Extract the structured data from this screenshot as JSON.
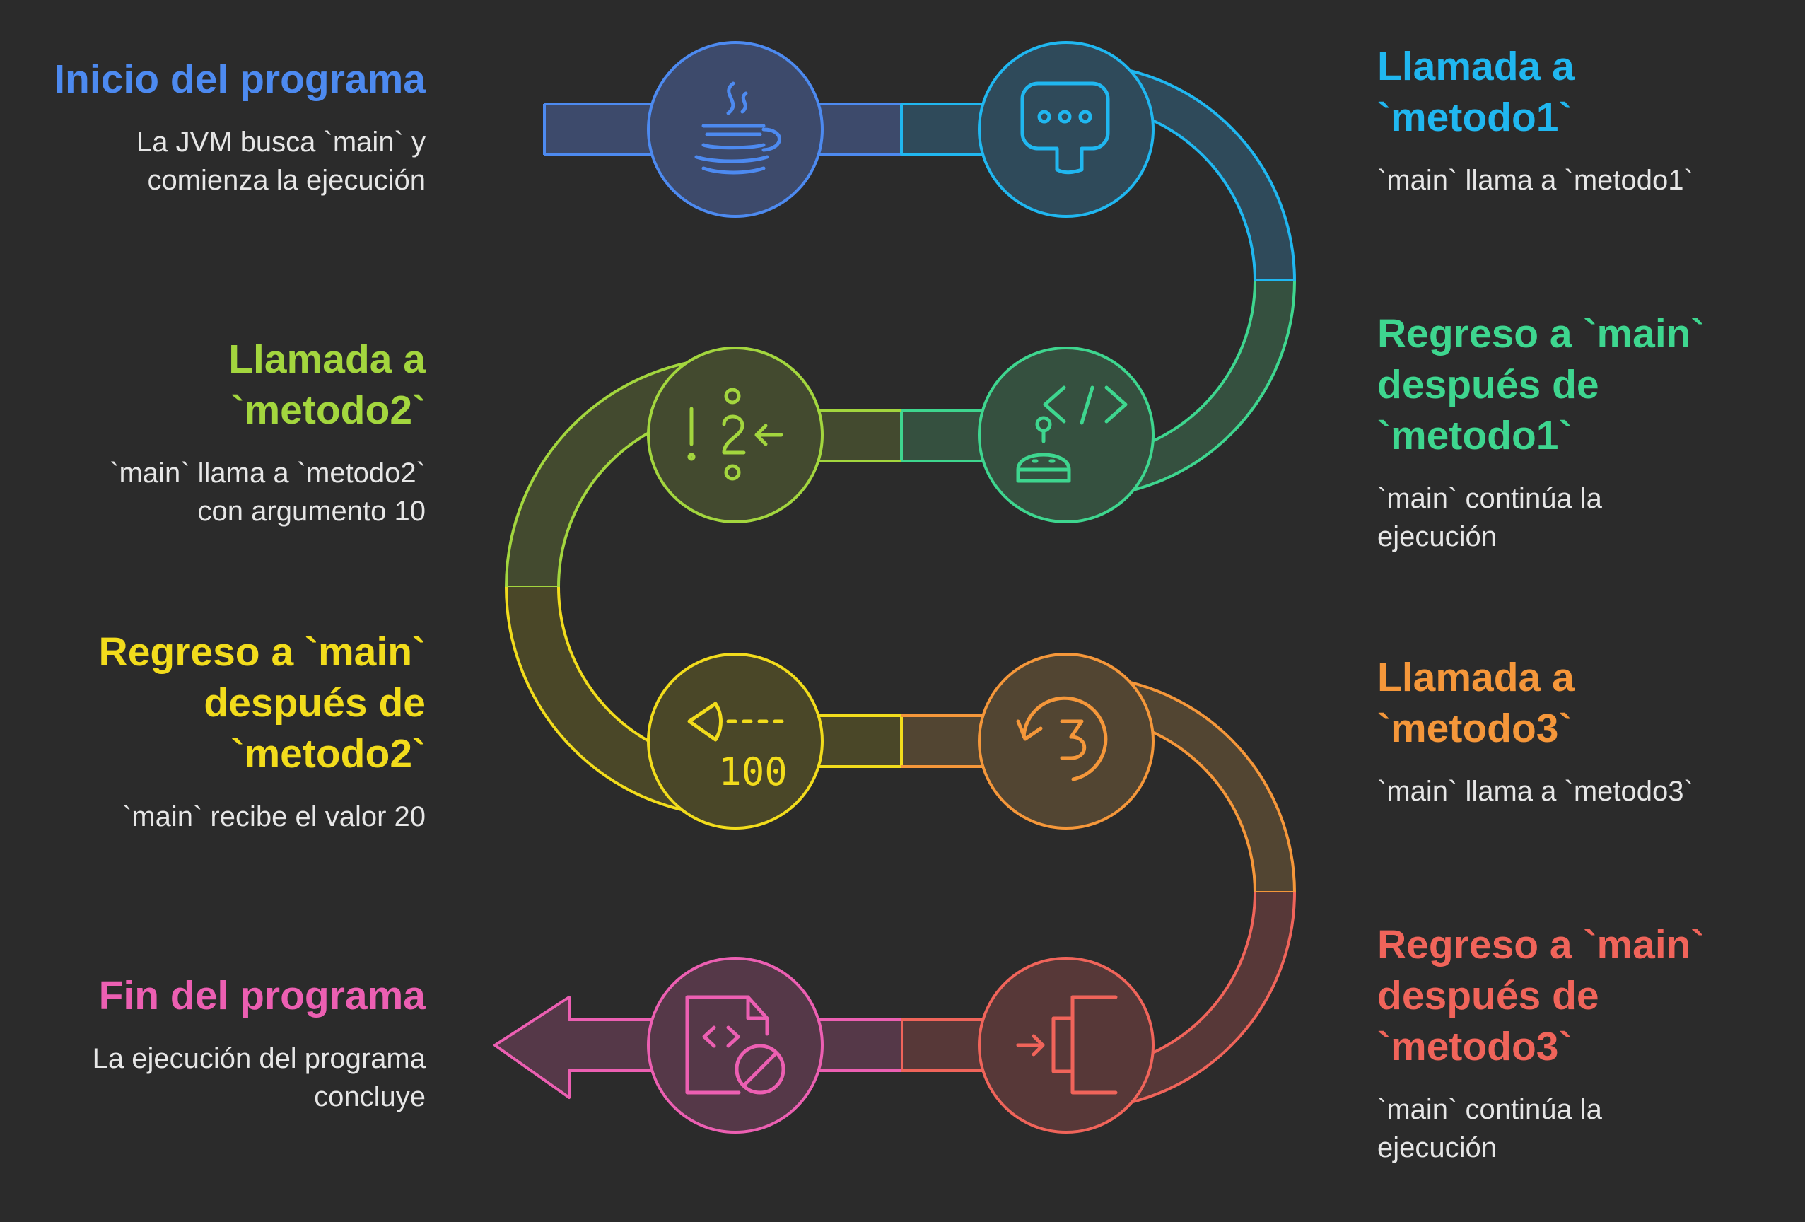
{
  "colors": {
    "background": "#2b2b2b",
    "step1": "#4d8af0",
    "step2": "#20b7f0",
    "step3": "#3ed68f",
    "step4": "#a3d63e",
    "step5": "#f2dc1c",
    "step6": "#f5973a",
    "step7": "#f0645a",
    "step8": "#ec5fb2"
  },
  "steps": [
    {
      "title": "Inicio del programa",
      "desc": "La JVM busca `main` y\ncomienza la ejecución",
      "icon": "java-icon"
    },
    {
      "title": "Llamada a\n`metodo1`",
      "desc": "`main` llama a `metodo1`",
      "icon": "chat-bubble-icon"
    },
    {
      "title": "Regreso a `main`\ndespués de\n`metodo1`",
      "desc": "`main` continúa la\nejecución",
      "icon": "robot-code-icon"
    },
    {
      "title": "Llamada a\n`metodo2`",
      "desc": "`main` llama a `metodo2`\ncon argumento 10",
      "icon": "argument-input-icon"
    },
    {
      "title": "Regreso a `main`\ndespués de\n`metodo2`",
      "desc": "`main` recibe el valor 20",
      "icon": "return-value-icon"
    },
    {
      "title": "Llamada a\n`metodo3`",
      "desc": "`main` llama a `metodo3`",
      "icon": "call-three-icon"
    },
    {
      "title": "Regreso a `main`\ndespués de\n`metodo3`",
      "desc": "`main` continúa la\nejecución",
      "icon": "exit-arrow-icon"
    },
    {
      "title": "Fin del programa",
      "desc": "La ejecución del programa\nconcluye",
      "icon": "file-code-blocked-icon"
    }
  ],
  "icon_text": {
    "return_value": "100"
  }
}
